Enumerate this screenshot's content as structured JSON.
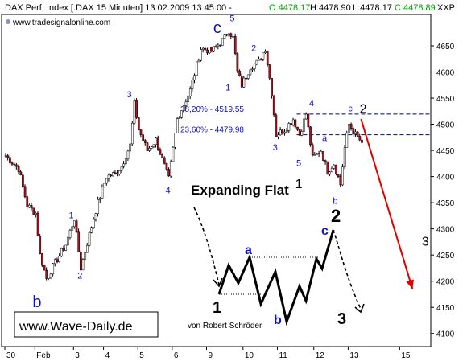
{
  "header": {
    "title": "DAX Perf. Index [.DAX  15 Minuten] 13.02.2009 13:45:00 -",
    "ohlc": [
      {
        "label": "O:4478.17",
        "color": "#00a000"
      },
      {
        "label": "H:4478.90",
        "color": "#000000"
      },
      {
        "label": "L:4478.17",
        "color": "#000000"
      },
      {
        "label": "C:4478.89",
        "color": "#00a000"
      }
    ],
    "symbol": "XXP",
    "website": "www.tradesignalonline.com"
  },
  "chart_data": {
    "type": "candlestick",
    "ylim": [
      4075,
      4710
    ],
    "y_ticks": [
      4100,
      4150,
      4200,
      4250,
      4300,
      4350,
      4400,
      4450,
      4500,
      4550,
      4600,
      4650
    ],
    "x_ticks": [
      {
        "label": "30",
        "i": 0
      },
      {
        "label": "Feb",
        "i": 14
      },
      {
        "label": "3",
        "i": 32
      },
      {
        "label": "4",
        "i": 46
      },
      {
        "label": "5",
        "i": 62
      },
      {
        "label": "6",
        "i": 78
      },
      {
        "label": "9",
        "i": 94
      },
      {
        "label": "10",
        "i": 111
      },
      {
        "label": "11",
        "i": 127
      },
      {
        "label": "12",
        "i": 144
      },
      {
        "label": "13",
        "i": 160
      },
      {
        "label": "15",
        "i": 184
      }
    ],
    "n_slots": 200,
    "price_path": [
      [
        0,
        4440
      ],
      [
        6,
        4415
      ],
      [
        10,
        4345
      ],
      [
        14,
        4330
      ],
      [
        16,
        4250
      ],
      [
        19,
        4205
      ],
      [
        23,
        4235
      ],
      [
        28,
        4270
      ],
      [
        32,
        4320
      ],
      [
        35,
        4225
      ],
      [
        40,
        4305
      ],
      [
        43,
        4350
      ],
      [
        47,
        4400
      ],
      [
        51,
        4405
      ],
      [
        54,
        4420
      ],
      [
        58,
        4460
      ],
      [
        60,
        4540
      ],
      [
        62,
        4490
      ],
      [
        66,
        4450
      ],
      [
        70,
        4470
      ],
      [
        74,
        4420
      ],
      [
        76,
        4395
      ],
      [
        80,
        4510
      ],
      [
        86,
        4565
      ],
      [
        91,
        4645
      ],
      [
        96,
        4640
      ],
      [
        101,
        4660
      ],
      [
        104,
        4680
      ],
      [
        106,
        4665
      ],
      [
        108,
        4600
      ],
      [
        110,
        4575
      ],
      [
        114,
        4610
      ],
      [
        118,
        4620
      ],
      [
        121,
        4645
      ],
      [
        124,
        4560
      ],
      [
        126,
        4480
      ],
      [
        130,
        4490
      ],
      [
        134,
        4510
      ],
      [
        137,
        4480
      ],
      [
        140,
        4520
      ],
      [
        143,
        4435
      ],
      [
        147,
        4450
      ],
      [
        150,
        4410
      ],
      [
        153,
        4425
      ],
      [
        156,
        4385
      ],
      [
        158,
        4455
      ],
      [
        160,
        4500
      ],
      [
        163,
        4480
      ],
      [
        166,
        4465
      ]
    ],
    "fib_levels": [
      {
        "label": "38,20% - 4519.55",
        "value": 4519.55
      },
      {
        "label": "23,60% - 4479.98",
        "value": 4479.98
      }
    ],
    "forecast_arrow": {
      "from": [
        166,
        4510
      ],
      "to": [
        190,
        4185
      ],
      "color": "#e00000"
    },
    "wave_labels": [
      {
        "text": "b",
        "i": 15,
        "v": 4150,
        "color": "#1010c8",
        "size": 20,
        "bold": false
      },
      {
        "text": "1",
        "i": 31,
        "v": 4320,
        "color": "#1010c8",
        "size": 11,
        "bold": false
      },
      {
        "text": "2",
        "i": 35,
        "v": 4205,
        "color": "#1010c8",
        "size": 11,
        "bold": false
      },
      {
        "text": "3",
        "i": 58,
        "v": 4552,
        "color": "#1010c8",
        "size": 11,
        "bold": false
      },
      {
        "text": "4",
        "i": 76,
        "v": 4368,
        "color": "#1010c8",
        "size": 11,
        "bold": false
      },
      {
        "text": "c",
        "i": 99,
        "v": 4675,
        "color": "#1010c8",
        "size": 20,
        "bold": false
      },
      {
        "text": "5",
        "i": 106,
        "v": 4697,
        "color": "#1010c8",
        "size": 11,
        "bold": false
      },
      {
        "text": "1",
        "i": 104,
        "v": 4565,
        "color": "#1010c8",
        "size": 11,
        "bold": false
      },
      {
        "text": "2",
        "i": 116,
        "v": 4640,
        "color": "#1010c8",
        "size": 11,
        "bold": false
      },
      {
        "text": "3",
        "i": 126,
        "v": 4450,
        "color": "#1010c8",
        "size": 11,
        "bold": false
      },
      {
        "text": "4",
        "i": 143,
        "v": 4535,
        "color": "#1010c8",
        "size": 11,
        "bold": false
      },
      {
        "text": "5",
        "i": 137,
        "v": 4420,
        "color": "#1010c8",
        "size": 11,
        "bold": false
      },
      {
        "text": "1",
        "i": 137,
        "v": 4378,
        "color": "#000000",
        "size": 16,
        "bold": false
      },
      {
        "text": "a",
        "i": 149,
        "v": 4468,
        "color": "#1010c8",
        "size": 11,
        "bold": false
      },
      {
        "text": "b",
        "i": 154,
        "v": 4348,
        "color": "#1010c8",
        "size": 11,
        "bold": false
      },
      {
        "text": "c",
        "i": 161,
        "v": 4525,
        "color": "#1010c8",
        "size": 11,
        "bold": false
      },
      {
        "text": "2",
        "i": 167,
        "v": 4522,
        "color": "#000000",
        "size": 16,
        "bold": false
      },
      {
        "text": "3",
        "i": 196,
        "v": 4268,
        "color": "#000000",
        "size": 16,
        "bold": false
      }
    ]
  },
  "inset": {
    "title": "Expanding Flat",
    "author": "von Robert Schröder",
    "labels": {
      "one": "1",
      "a": "a",
      "b": "b",
      "c": "c",
      "two": "2",
      "three": "3"
    }
  },
  "watermark": "www.Wave-Daily.de"
}
